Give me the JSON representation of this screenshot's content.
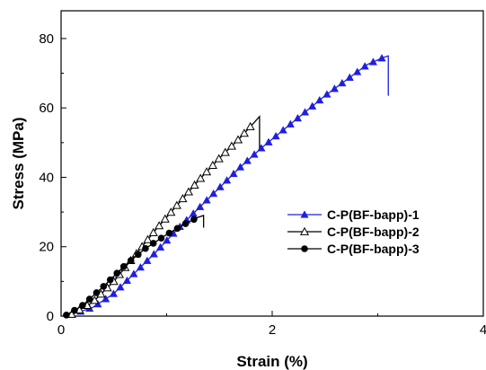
{
  "chart_data": {
    "type": "line",
    "xlabel": "Strain (%)",
    "ylabel": "Stress (MPa)",
    "xlim": [
      0,
      4
    ],
    "ylim": [
      0,
      88
    ],
    "x_ticks": [
      0,
      2,
      4
    ],
    "y_ticks": [
      0,
      20,
      40,
      60,
      80
    ],
    "legend_position": "right-center",
    "grid": false,
    "series": [
      {
        "name": "C-P(BF-bapp)-1",
        "color": "#1f1fe0",
        "marker": "filled-triangle",
        "x": [
          0.1,
          0.3,
          0.5,
          0.7,
          0.9,
          1.1,
          1.3,
          1.5,
          1.7,
          1.9,
          2.1,
          2.3,
          2.5,
          2.7,
          2.9,
          3.05,
          3.1,
          3.1
        ],
        "y": [
          0.5,
          2.5,
          6.5,
          12.5,
          18.5,
          25,
          31,
          37,
          43,
          48.5,
          53.5,
          58.5,
          63.5,
          68,
          72.5,
          74.5,
          75,
          63.5
        ]
      },
      {
        "name": "C-P(BF-bapp)-2",
        "color": "#000000",
        "marker": "open-triangle",
        "x": [
          0.1,
          0.3,
          0.5,
          0.7,
          0.9,
          1.1,
          1.3,
          1.5,
          1.7,
          1.82,
          1.88,
          1.88
        ],
        "y": [
          0.5,
          4,
          10,
          17.5,
          25,
          32,
          39,
          45.5,
          51.5,
          55.5,
          57.5,
          48.5
        ]
      },
      {
        "name": "C-P(BF-bapp)-3",
        "color": "#000000",
        "marker": "filled-circle",
        "x": [
          0.05,
          0.2,
          0.4,
          0.6,
          0.8,
          1.0,
          1.2,
          1.3,
          1.35,
          1.35
        ],
        "y": [
          0.3,
          3,
          8.5,
          14.5,
          19.5,
          23.5,
          27,
          28.5,
          29,
          25.5
        ]
      }
    ]
  }
}
